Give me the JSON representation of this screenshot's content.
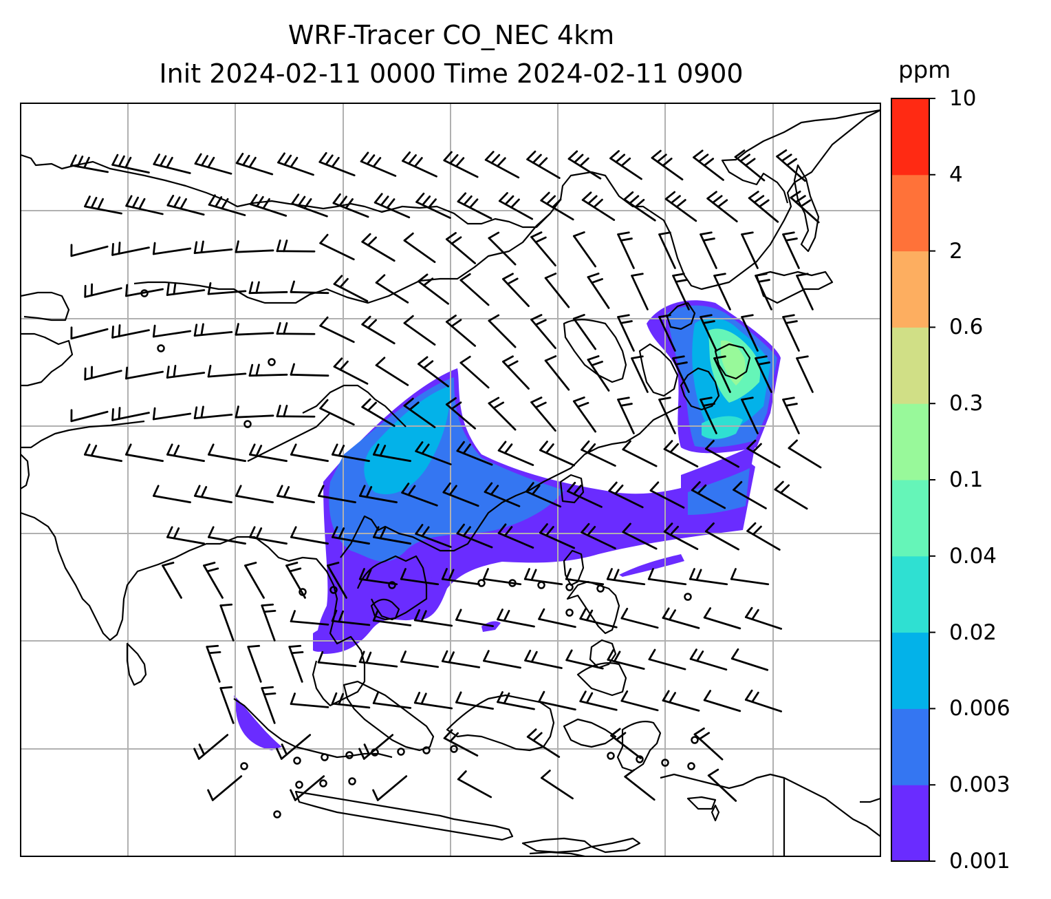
{
  "title": {
    "line1": "WRF-Tracer CO_NEC 4km",
    "line2": "Init 2024-02-11 0000 Time 2024-02-11 0900"
  },
  "colorbar": {
    "unit": "ppm",
    "levels": [
      "0.001",
      "0.003",
      "0.006",
      "0.02",
      "0.04",
      "0.1",
      "0.3",
      "0.6",
      "2",
      "4",
      "10"
    ],
    "colors": [
      "#6a2cff",
      "#3476f2",
      "#03b2e9",
      "#2fe0d2",
      "#65f5b8",
      "#98f99a",
      "#d0df86",
      "#fdae60",
      "#ff7239",
      "#ff2a13"
    ]
  },
  "map": {
    "field": "CO tracer concentration with wind barbs",
    "gridline_color": "#b0b0b0",
    "coastline_color": "#000000"
  }
}
